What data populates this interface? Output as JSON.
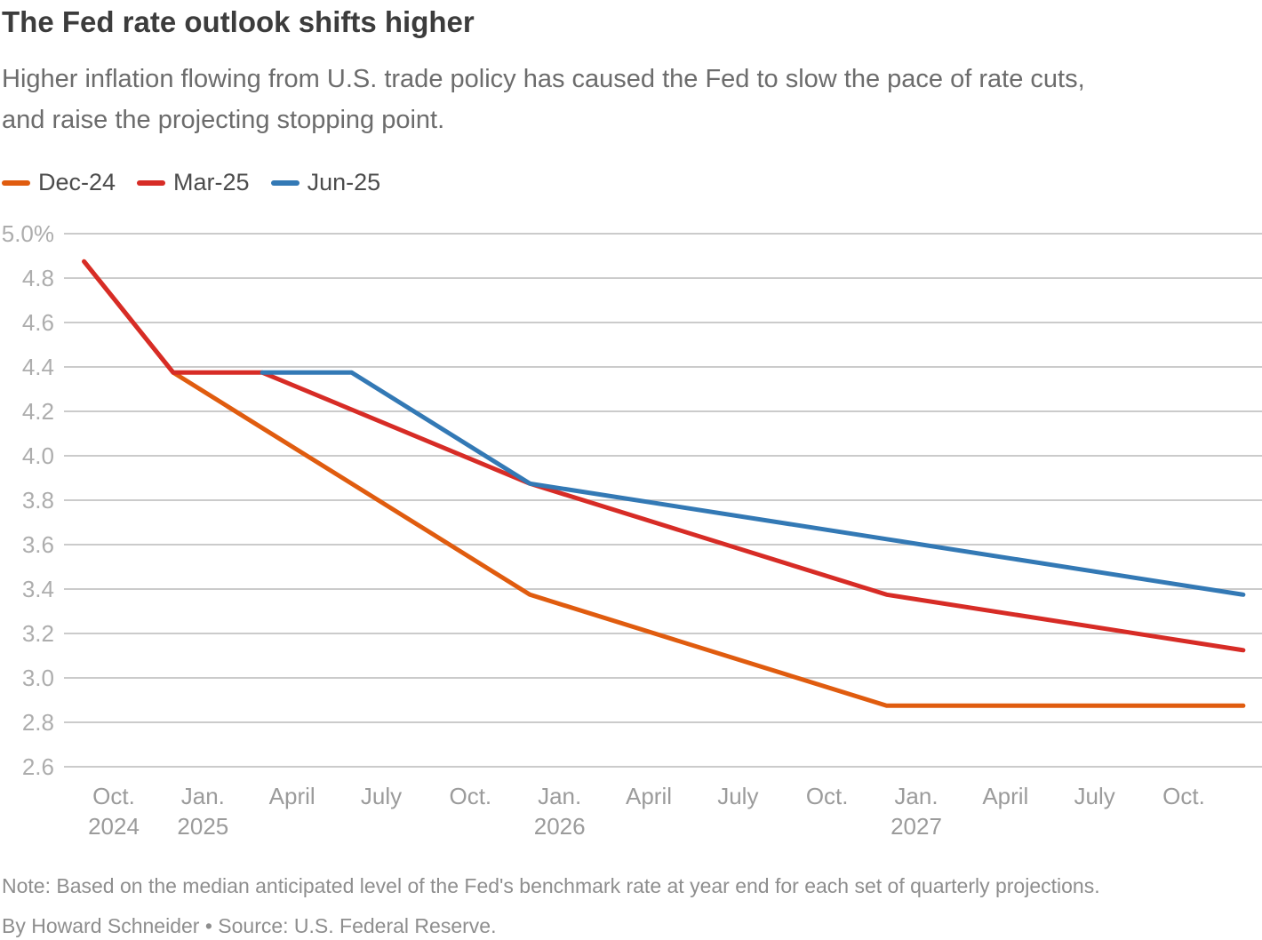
{
  "header": {
    "title": "The Fed rate outlook shifts higher",
    "subtitle_lines": [
      "Higher inflation flowing from U.S. trade policy has caused the Fed to slow the pace of rate cuts,",
      "and raise the projecting stopping point."
    ]
  },
  "legend": [
    {
      "label": "Dec-24",
      "color": "#E05C0F"
    },
    {
      "label": "Mar-25",
      "color": "#D72C26"
    },
    {
      "label": "Jun-25",
      "color": "#3379B5"
    }
  ],
  "chart_data": {
    "type": "line",
    "title": "The Fed rate outlook shifts higher",
    "xlabel": "",
    "ylabel": "",
    "grid": "horizontal",
    "legend_position": "top-left",
    "y_axis": {
      "min": 2.6,
      "max": 5.0,
      "step": 0.2,
      "tick_labels": [
        "5.0%",
        "4.8",
        "4.6",
        "4.4",
        "4.2",
        "4.0",
        "3.8",
        "3.6",
        "3.4",
        "3.2",
        "3.0",
        "2.8",
        "2.6"
      ]
    },
    "x_axis": {
      "ticks": [
        {
          "label": "Oct.",
          "year": "2024"
        },
        {
          "label": "Jan.",
          "year": "2025"
        },
        {
          "label": "April"
        },
        {
          "label": "July"
        },
        {
          "label": "Oct."
        },
        {
          "label": "Jan.",
          "year": "2026"
        },
        {
          "label": "April"
        },
        {
          "label": "July"
        },
        {
          "label": "Oct."
        },
        {
          "label": "Jan.",
          "year": "2027"
        },
        {
          "label": "April"
        },
        {
          "label": "July"
        },
        {
          "label": "Oct."
        }
      ]
    },
    "series": [
      {
        "name": "Dec-24",
        "color": "#E05C0F",
        "points": [
          {
            "date": "Sep 2024",
            "value": 4.875
          },
          {
            "date": "Dec 2024",
            "value": 4.375
          },
          {
            "date": "Dec 2025",
            "value": 3.375
          },
          {
            "date": "Dec 2026",
            "value": 2.875
          },
          {
            "date": "Dec 2027",
            "value": 2.875
          }
        ]
      },
      {
        "name": "Mar-25",
        "color": "#D72C26",
        "points": [
          {
            "date": "Sep 2024",
            "value": 4.875
          },
          {
            "date": "Dec 2024",
            "value": 4.375
          },
          {
            "date": "Mar 2025",
            "value": 4.375
          },
          {
            "date": "Dec 2025",
            "value": 3.875
          },
          {
            "date": "Dec 2026",
            "value": 3.375
          },
          {
            "date": "Dec 2027",
            "value": 3.125
          }
        ]
      },
      {
        "name": "Jun-25",
        "color": "#3379B5",
        "points": [
          {
            "date": "Mar 2025",
            "value": 4.375
          },
          {
            "date": "Jun 2025",
            "value": 4.375
          },
          {
            "date": "Dec 2025",
            "value": 3.875
          },
          {
            "date": "Dec 2026",
            "value": 3.625
          },
          {
            "date": "Dec 2027",
            "value": 3.375
          }
        ]
      }
    ]
  },
  "footer": {
    "note": "Note: Based on the median anticipated level of the Fed's benchmark rate at year end for each set of quarterly projections.",
    "byline": "By Howard Schneider • Source: U.S. Federal Reserve."
  }
}
